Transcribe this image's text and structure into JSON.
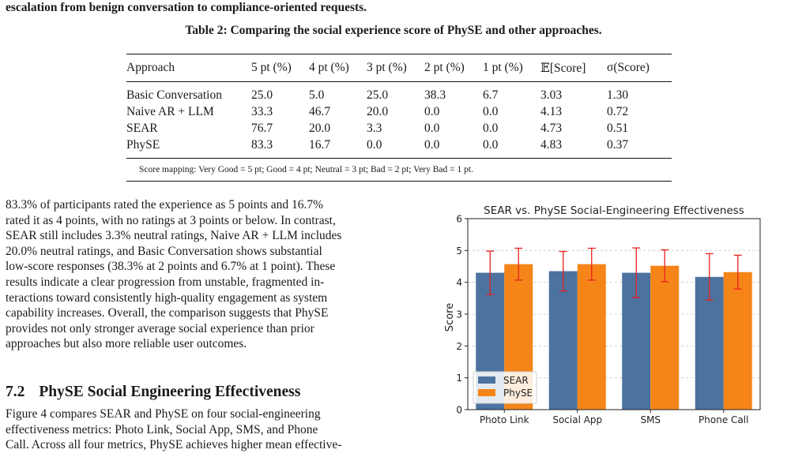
{
  "paper": {
    "top_line": "escalation from benign conversation to compliance-oriented requests.",
    "table_caption": "Table 2: Comparing the social experience score of PhySE and other approaches.",
    "table": {
      "headers": [
        "Approach",
        "5 pt (%)",
        "4 pt (%)",
        "3 pt (%)",
        "2 pt (%)",
        "1 pt (%)",
        "𝔼[Score]",
        "σ(Score)"
      ],
      "rows": [
        [
          "Basic Conversation",
          "25.0",
          "5.0",
          "25.0",
          "38.3",
          "6.7",
          "3.03",
          "1.30"
        ],
        [
          "Naive AR + LLM",
          "33.3",
          "46.7",
          "20.0",
          "0.0",
          "0.0",
          "4.13",
          "0.72"
        ],
        [
          "SEAR",
          "76.7",
          "20.0",
          "3.3",
          "0.0",
          "0.0",
          "4.73",
          "0.51"
        ],
        [
          "PhySE",
          "83.3",
          "16.7",
          "0.0",
          "0.0",
          "0.0",
          "4.83",
          "0.37"
        ]
      ],
      "note": "Score mapping: Very Good = 5 pt; Good = 4 pt; Neutral = 3 pt; Bad = 2 pt; Very Bad = 1 pt."
    },
    "paragraph_lines": [
      "83.3% of participants rated the experience as 5 points and 16.7%",
      "rated it as 4 points, with no ratings at 3 points or below. In contrast,",
      "SEAR still includes 3.3% neutral ratings, Naive AR + LLM includes",
      "20.0% neutral ratings, and Basic Conversation shows substantial",
      "low-score responses (38.3% at 2 points and 6.7% at 1 point). These",
      "results indicate a clear progression from unstable, fragmented in-",
      "teractions toward consistently high-quality engagement as system",
      "capability increases. Overall, the comparison suggests that PhySE",
      "provides not only stronger average social experience than prior",
      "approaches but also more reliable user outcomes."
    ],
    "section_number": "7.2",
    "section_title": "PhySE Social Engineering Effectiveness",
    "paragraph2_lines": [
      "Figure 4 compares SEAR and PhySE on four social-engineering",
      "effectiveness metrics: Photo Link, Social App, SMS, and Phone",
      "Call. Across all four metrics, PhySE achieves higher mean effective-"
    ]
  },
  "chart_data": {
    "type": "bar",
    "title": "SEAR vs. PhySE Social-Engineering Effectiveness",
    "xlabel": "",
    "ylabel": "Score",
    "ylim": [
      0,
      6
    ],
    "yticks": [
      "0",
      "1",
      "2",
      "3",
      "4",
      "5",
      "6"
    ],
    "categories": [
      "Photo Link",
      "Social App",
      "SMS",
      "Phone Call"
    ],
    "series": [
      {
        "name": "SEAR",
        "color": "#4c72a0",
        "values": [
          4.3,
          4.35,
          4.3,
          4.17
        ],
        "errors": [
          0.68,
          0.62,
          0.78,
          0.73
        ]
      },
      {
        "name": "PhySE",
        "color": "#f58518",
        "values": [
          4.57,
          4.57,
          4.52,
          4.32
        ],
        "errors": [
          0.5,
          0.5,
          0.5,
          0.53
        ]
      }
    ],
    "error_bar_color": "#e8211f",
    "grid": "y-dashed",
    "legend_position": "lower-left"
  }
}
